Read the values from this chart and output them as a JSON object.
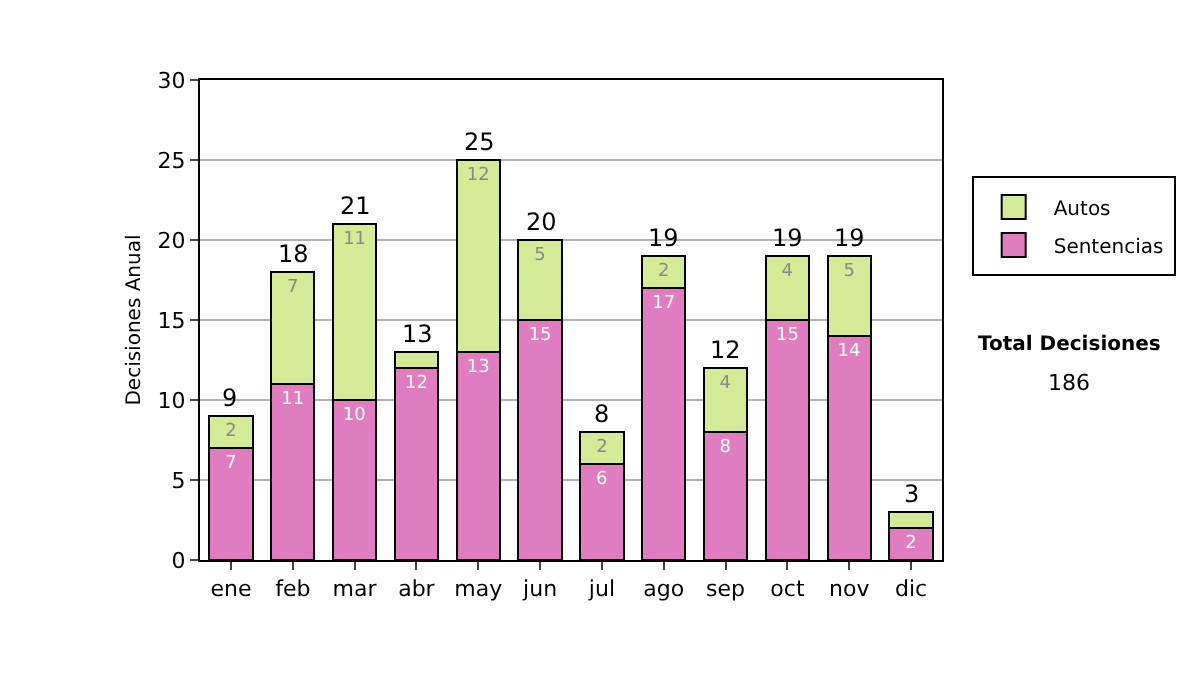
{
  "chart_data": {
    "type": "bar",
    "stacked": true,
    "ylabel": "Decisiones Anual",
    "categories": [
      "ene",
      "feb",
      "mar",
      "abr",
      "may",
      "jun",
      "jul",
      "ago",
      "sep",
      "oct",
      "nov",
      "dic"
    ],
    "series": [
      {
        "name": "Sentencias",
        "color": "#e07cc0",
        "values": [
          7,
          11,
          10,
          12,
          13,
          15,
          6,
          17,
          8,
          15,
          14,
          2
        ],
        "value_labels": [
          "7",
          "11",
          "10",
          "12",
          "13",
          "15",
          "6",
          "17",
          "8",
          "15",
          "14",
          "2"
        ]
      },
      {
        "name": "Autos",
        "color": "#d4eb98",
        "values": [
          2,
          7,
          11,
          1,
          12,
          5,
          2,
          2,
          4,
          4,
          5,
          1
        ],
        "value_labels": [
          "2",
          "7",
          "11",
          null,
          "12",
          "5",
          "2",
          "2",
          "4",
          "4",
          "5",
          null
        ]
      }
    ],
    "totals": [
      "9",
      "18",
      "21",
      "13",
      "25",
      "20",
      "8",
      "19",
      "12",
      "19",
      "19",
      "3"
    ],
    "ylim": [
      0,
      30
    ],
    "yticks": [
      0,
      5,
      10,
      15,
      20,
      25,
      30
    ],
    "grid": "y",
    "legend": "right",
    "annotations": [
      "Total Decisiones",
      "186"
    ]
  }
}
